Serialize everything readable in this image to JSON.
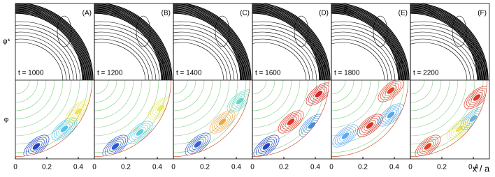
{
  "panels": [
    {
      "label": "(A)",
      "time": "t = 1000"
    },
    {
      "label": "(B)",
      "time": "t = 1200"
    },
    {
      "label": "(C)",
      "time": "t = 1400"
    },
    {
      "label": "(D)",
      "time": "t = 1600"
    },
    {
      "label": "(E)",
      "time": "t = 1800"
    },
    {
      "label": "(F)",
      "time": "t = 2200"
    }
  ],
  "row_labels": [
    "ψ*",
    "φ"
  ],
  "x_ticks": [
    "0",
    "0.2",
    "0.4"
  ],
  "x_label": "x / a"
}
